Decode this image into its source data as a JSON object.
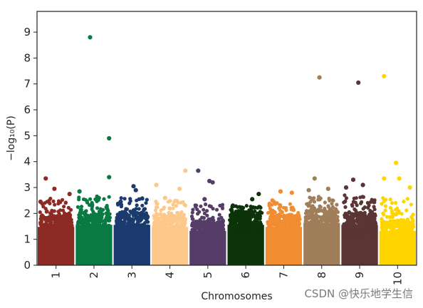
{
  "chart_data": {
    "type": "scatter",
    "subtype": "manhattan",
    "title": "",
    "xlabel": "Chromosomes",
    "ylabel": "−log₁₀(P)",
    "ylim": [
      0,
      9.8
    ],
    "yticks": [
      0,
      1,
      2,
      3,
      4,
      5,
      6,
      7,
      8,
      9
    ],
    "grid": false,
    "categories": [
      "1",
      "2",
      "3",
      "4",
      "5",
      "6",
      "7",
      "8",
      "9",
      "10"
    ],
    "colors": [
      "#8b2b24",
      "#0a7a45",
      "#1b3a6e",
      "#fcc98a",
      "#563d68",
      "#0c3309",
      "#f28c31",
      "#a07e5a",
      "#5a3534",
      "#ffd500"
    ],
    "series": [
      {
        "chromosome": "1",
        "dense_max": 1.9,
        "scatter_max": 2.6,
        "highlights": [
          {
            "pos": 0.18,
            "value": 3.35
          },
          {
            "pos": 0.45,
            "value": 2.95
          },
          {
            "pos": 0.92,
            "value": 2.75
          },
          {
            "pos": 0.02,
            "value": 2.45
          }
        ]
      },
      {
        "chromosome": "2",
        "dense_max": 2.0,
        "scatter_max": 2.7,
        "highlights": [
          {
            "pos": 0.38,
            "value": 8.8
          },
          {
            "pos": 0.97,
            "value": 4.9
          },
          {
            "pos": 0.97,
            "value": 3.4
          },
          {
            "pos": 0.05,
            "value": 2.85
          },
          {
            "pos": 0.65,
            "value": 2.6
          }
        ]
      },
      {
        "chromosome": "3",
        "dense_max": 2.0,
        "scatter_max": 2.6,
        "highlights": [
          {
            "pos": 0.55,
            "value": 3.05
          },
          {
            "pos": 0.62,
            "value": 2.9
          },
          {
            "pos": 0.15,
            "value": 2.45
          }
        ]
      },
      {
        "chromosome": "4",
        "dense_max": 1.9,
        "scatter_max": 2.5,
        "highlights": [
          {
            "pos": 0.98,
            "value": 3.65
          },
          {
            "pos": 0.08,
            "value": 3.1
          },
          {
            "pos": 0.8,
            "value": 2.95
          },
          {
            "pos": 0.35,
            "value": 2.6
          }
        ]
      },
      {
        "chromosome": "5",
        "dense_max": 1.7,
        "scatter_max": 2.4,
        "highlights": [
          {
            "pos": 0.2,
            "value": 3.65
          },
          {
            "pos": 0.55,
            "value": 3.25
          },
          {
            "pos": 0.65,
            "value": 3.2
          },
          {
            "pos": 0.4,
            "value": 2.55
          }
        ]
      },
      {
        "chromosome": "6",
        "dense_max": 2.0,
        "scatter_max": 2.3,
        "highlights": [
          {
            "pos": 0.9,
            "value": 2.75
          },
          {
            "pos": 0.7,
            "value": 2.55
          },
          {
            "pos": 0.1,
            "value": 2.3
          }
        ]
      },
      {
        "chromosome": "7",
        "dense_max": 1.9,
        "scatter_max": 2.5,
        "highlights": [
          {
            "pos": 0.4,
            "value": 2.85
          },
          {
            "pos": 0.75,
            "value": 2.8
          },
          {
            "pos": 0.15,
            "value": 2.5
          }
        ]
      },
      {
        "chromosome": "8",
        "dense_max": 2.1,
        "scatter_max": 2.7,
        "highlights": [
          {
            "pos": 0.43,
            "value": 7.25
          },
          {
            "pos": 0.28,
            "value": 3.35
          },
          {
            "pos": 0.7,
            "value": 2.95
          },
          {
            "pos": 0.1,
            "value": 2.9
          }
        ]
      },
      {
        "chromosome": "9",
        "dense_max": 2.0,
        "scatter_max": 2.7,
        "highlights": [
          {
            "pos": 0.46,
            "value": 7.05
          },
          {
            "pos": 0.3,
            "value": 3.3
          },
          {
            "pos": 0.6,
            "value": 3.1
          },
          {
            "pos": 0.08,
            "value": 3.0
          }
        ]
      },
      {
        "chromosome": "10",
        "dense_max": 1.7,
        "scatter_max": 2.6,
        "highlights": [
          {
            "pos": 0.08,
            "value": 7.3
          },
          {
            "pos": 0.45,
            "value": 3.95
          },
          {
            "pos": 0.55,
            "value": 3.35
          },
          {
            "pos": 0.08,
            "value": 3.35
          },
          {
            "pos": 0.88,
            "value": 3.0
          }
        ]
      }
    ]
  },
  "watermark": "CSDN @快乐地学生信"
}
